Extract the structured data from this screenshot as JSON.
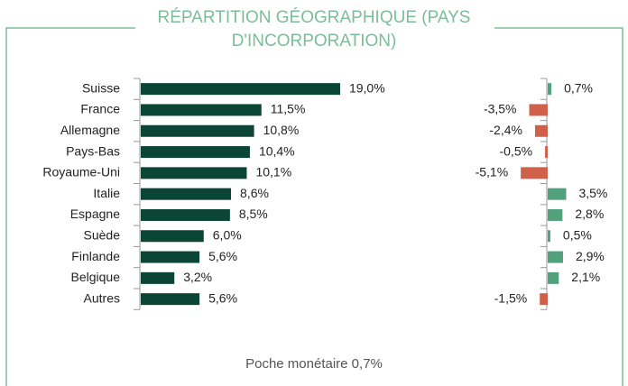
{
  "title": "RÉPARTITION GÉOGRAPHIQUE (PAYS D'INCORPORATION)",
  "title_lines": [
    "RÉPARTITION GÉOGRAPHIQUE (PAYS",
    "D'INCORPORATION)"
  ],
  "footnote": "Poche monétaire 0,7%",
  "chart_data": [
    {
      "type": "bar",
      "orientation": "horizontal",
      "color": "#0b4536",
      "categories": [
        "Suisse",
        "France",
        "Allemagne",
        "Pays-Bas",
        "Royaume-Uni",
        "Italie",
        "Espagne",
        "Suède",
        "Finlande",
        "Belgique",
        "Autres"
      ],
      "values": [
        19.0,
        11.5,
        10.8,
        10.4,
        10.1,
        8.6,
        8.5,
        6.0,
        5.6,
        3.2,
        5.6
      ],
      "value_labels": [
        "19,0%",
        "11,5%",
        "10,8%",
        "10,4%",
        "10,1%",
        "8,6%",
        "8,5%",
        "6,0%",
        "5,6%",
        "3,2%",
        "5,6%"
      ]
    },
    {
      "type": "bar",
      "orientation": "horizontal",
      "positive_color": "#52a17c",
      "negative_color": "#d0604a",
      "values": [
        0.7,
        -3.5,
        -2.4,
        -0.5,
        -5.1,
        3.5,
        2.8,
        0.5,
        2.9,
        2.1,
        -1.5
      ],
      "value_labels": [
        "0,7%",
        "-3,5%",
        "-2,4%",
        "-0,5%",
        "-5,1%",
        "3,5%",
        "2,8%",
        "0,5%",
        "2,9%",
        "2,1%",
        "-1,5%"
      ]
    }
  ]
}
